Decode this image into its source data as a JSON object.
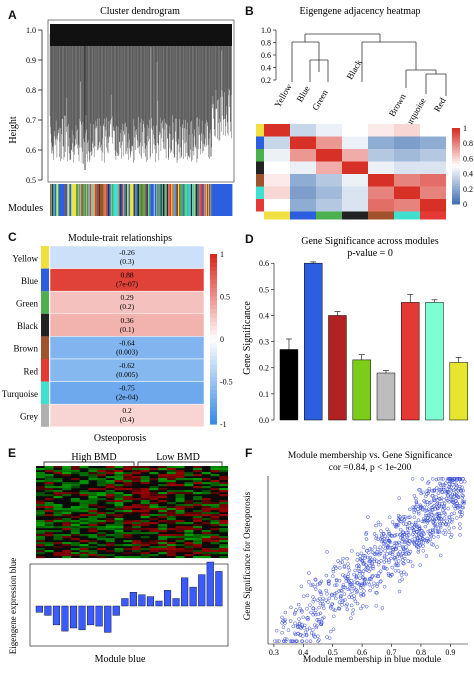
{
  "panel_labels": [
    "A",
    "B",
    "C",
    "D",
    "E",
    "F"
  ],
  "panelA": {
    "title": "Cluster dendrogram",
    "ylabel": "Height",
    "ticks": [
      "1.0",
      "0.9",
      "0.8",
      "0.7",
      "0.6",
      "0.5"
    ],
    "colorbar_label": "Modules",
    "colors": {
      "turquoise": "#40e0d0",
      "blue": "#2b5fe0",
      "brown": "#a0522d",
      "yellow": "#f0e040",
      "green": "#4caf50",
      "red": "#e53935",
      "black": "#222222",
      "grey": "#b0b0b0"
    }
  },
  "panelB": {
    "title": "Eigengene adjacency heatmap",
    "dendro_ticks": [
      "1.0",
      "0.8",
      "0.6",
      "0.4",
      "0.2"
    ],
    "leaves": [
      "Yellow",
      "Blue",
      "Green",
      "Black",
      "Brown",
      "Turquoise",
      "Red"
    ],
    "scale_ticks": [
      "1",
      "0.8",
      "0.6",
      "0.4",
      "0.2",
      "0"
    ],
    "row_colors": [
      "#f0e040",
      "#2b5fe0",
      "#4caf50",
      "#222222",
      "#a0522d",
      "#40e0d0",
      "#e53935"
    ],
    "heat": [
      [
        1.0,
        0.35,
        0.45,
        0.5,
        0.55,
        0.6,
        0.5
      ],
      [
        0.35,
        1.0,
        0.75,
        0.45,
        0.2,
        0.15,
        0.2
      ],
      [
        0.45,
        0.75,
        1.0,
        0.7,
        0.3,
        0.25,
        0.3
      ],
      [
        0.5,
        0.45,
        0.7,
        1.0,
        0.45,
        0.4,
        0.4
      ],
      [
        0.55,
        0.2,
        0.3,
        0.45,
        1.0,
        0.8,
        0.85
      ],
      [
        0.6,
        0.15,
        0.25,
        0.4,
        0.8,
        1.0,
        0.8
      ],
      [
        0.5,
        0.2,
        0.3,
        0.4,
        0.85,
        0.8,
        1.0
      ]
    ]
  },
  "panelC": {
    "title": "Module-trait relationships",
    "xlabel": "Osteoporosis",
    "scale_ticks": [
      "1",
      "0.5",
      "0",
      "-0.5",
      "-1"
    ],
    "rows": [
      {
        "name": "Yellow",
        "r": "-0.26",
        "p": "(0.3)",
        "color": "#f0e040"
      },
      {
        "name": "Blue",
        "r": "0.88",
        "p": "(7e-07)",
        "color": "#2b5fe0"
      },
      {
        "name": "Green",
        "r": "0.29",
        "p": "(0.2)",
        "color": "#4caf50"
      },
      {
        "name": "Black",
        "r": "0.36",
        "p": "(0.1)",
        "color": "#222222"
      },
      {
        "name": "Brown",
        "r": "-0.64",
        "p": "(0.003)",
        "color": "#a0522d"
      },
      {
        "name": "Red",
        "r": "-0.62",
        "p": "(0.005)",
        "color": "#e53935"
      },
      {
        "name": "Turquoise",
        "r": "-0.75",
        "p": "(2e-04)",
        "color": "#40e0d0"
      },
      {
        "name": "Grey",
        "r": "0.2",
        "p": "(0.4)",
        "color": "#b0b0b0"
      }
    ]
  },
  "panelE": {
    "group1": "High BMD",
    "group2": "Low BMD",
    "ylabel": "Eigengene expression blue",
    "xlabel": "Module blue"
  },
  "panelF_text": {
    "title": "Module membership vs. Gene Significance",
    "subtitle": "cor =0.84, p < 1e-200"
  },
  "chart_data": [
    {
      "type": "bar",
      "title": "Gene Significance across modules",
      "subtitle": "p-value = 0",
      "ylabel": "Gene Significance",
      "xlabel": "",
      "ylim": [
        0,
        0.62
      ],
      "yticks": [
        "0.0",
        "0.1",
        "0.2",
        "0.3",
        "0.4",
        "0.5",
        "0.6"
      ],
      "values": [
        0.27,
        0.6,
        0.4,
        0.23,
        0.18,
        0.45,
        0.45,
        0.22
      ],
      "errors": [
        0.04,
        0.005,
        0.015,
        0.02,
        0.01,
        0.03,
        0.01,
        0.02
      ],
      "colors": [
        "#000000",
        "#2b5fe0",
        "#b22222",
        "#7ccd1a",
        "#bdbdbd",
        "#e53935",
        "#7fffd4",
        "#e6e62e"
      ]
    },
    {
      "type": "bar",
      "title": "",
      "ylabel": "",
      "values": [
        -0.1,
        -0.15,
        -0.3,
        -0.4,
        -0.35,
        -0.38,
        -0.3,
        -0.32,
        -0.42,
        -0.15,
        0.12,
        0.22,
        0.18,
        0.15,
        0.08,
        0.25,
        0.12,
        0.45,
        0.3,
        0.5,
        0.7,
        0.55
      ],
      "ylim": [
        -0.5,
        0.8
      ]
    },
    {
      "type": "scatter",
      "title": "Module membership vs. Gene Significance",
      "xlabel": "Module membership in blue module",
      "ylabel": "Gene Significance for Osteoporosis",
      "xlim": [
        0.28,
        0.96
      ],
      "ylim": [
        0.25,
        0.85
      ],
      "xticks": [
        "0.3",
        "0.4",
        "0.5",
        "0.6",
        "0.7",
        "0.8",
        "0.9"
      ],
      "cor": 0.84,
      "n_points": 900
    }
  ]
}
